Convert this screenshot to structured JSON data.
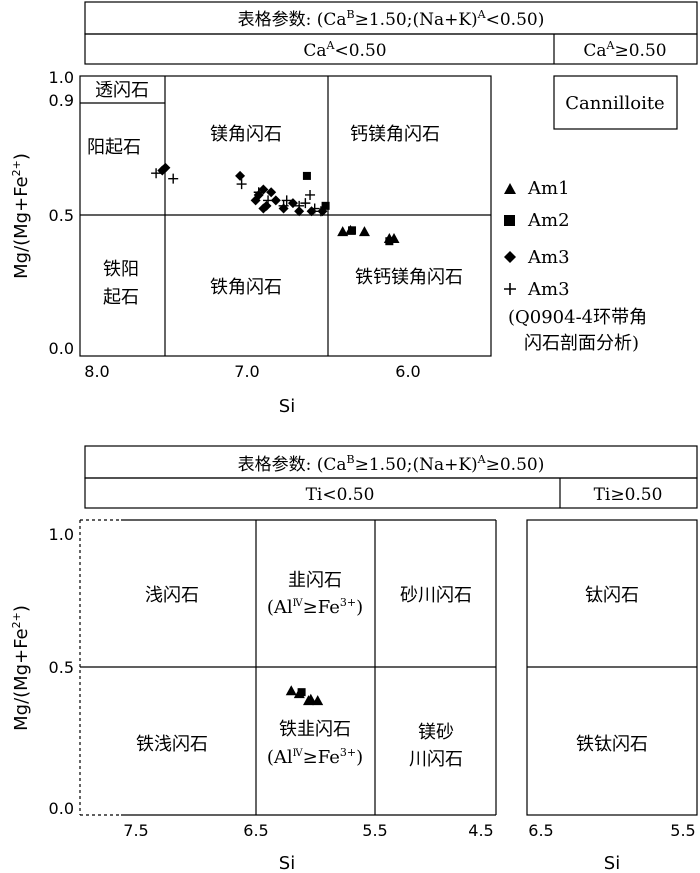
{
  "top": {
    "header": "表格参数: (Ca",
    "header_full": [
      "表格参数: (Ca",
      "B",
      "≥1.50;(Na+K)",
      "A",
      "<0.50)"
    ],
    "sub_left": [
      "Ca",
      "A",
      "<0.50"
    ],
    "sub_right": [
      "Ca",
      "A",
      "≥0.50"
    ],
    "ylabel": "Mg/(Mg+Fe",
    "ylabel_sup": "2+",
    "ylabel_end": ")",
    "xlabel": "Si",
    "xticks": [
      "8.0",
      "7.0",
      "6.0"
    ],
    "yticks": [
      "1.0",
      "0.9",
      "0.5",
      "0.0"
    ],
    "fields": {
      "tremolite": "透闪石",
      "actinolite": "阳起石",
      "mghbl": "镁角闪石",
      "tschermakite": "钙镁角闪石",
      "ferroact1": "铁阳",
      "ferroact2": "起石",
      "ferrohbl": "铁角闪石",
      "ferrotsch": "铁钙镁角闪石",
      "cannilloite": "Cannilloite"
    },
    "legend": [
      "Am1",
      "Am2",
      "Am3",
      "Am3",
      "(Q0904-4环带角",
      "闪石剖面分析)"
    ],
    "legend_symbols": [
      "triangle",
      "square",
      "diamond",
      "plus"
    ]
  },
  "bottom": {
    "header_full": [
      "表格参数: (Ca",
      "B",
      "≥1.50;(Na+K)",
      "A",
      "≥0.50)"
    ],
    "sub_left": "Ti<0.50",
    "sub_right": "Ti≥0.50",
    "ylabel": "Mg/(Mg+Fe",
    "ylabel_sup": "2+",
    "ylabel_end": ")",
    "xlabel": "Si",
    "xticks_left": [
      "7.5",
      "6.5",
      "5.5",
      "4.5"
    ],
    "xticks_right": [
      "6.5",
      "5.5"
    ],
    "yticks": [
      "1.0",
      "0.5",
      "0.0"
    ],
    "fields": {
      "edenite": "浅闪石",
      "pargasite": "韭闪石",
      "pargasite_cond": [
        "(Al",
        "Ⅳ",
        "≥Fe",
        "3+",
        ")"
      ],
      "sadanagaite": "砂川闪石",
      "kaersutite": "钛闪石",
      "ferroedenite": "铁浅闪石",
      "ferropargasite": "铁韭闪石",
      "mgsad1": "镁砂",
      "mgsad2": "川闪石",
      "ferrokaersutite": "铁钛闪石"
    }
  },
  "chart_data": [
    {
      "type": "scatter",
      "panel": "top",
      "xlabel": "Si",
      "ylabel": "Mg/(Mg+Fe2+)",
      "xlim": [
        8.0,
        5.5
      ],
      "ylim": [
        0.0,
        1.0
      ],
      "series": [
        {
          "name": "Am1",
          "symbol": "triangle",
          "points": [
            [
              6.42,
              0.435
            ],
            [
              6.37,
              0.44
            ],
            [
              6.28,
              0.435
            ],
            [
              6.12,
              0.41
            ],
            [
              6.09,
              0.41
            ]
          ]
        },
        {
          "name": "Am2",
          "symbol": "square",
          "points": [
            [
              6.65,
              0.64
            ],
            [
              6.53,
              0.53
            ],
            [
              6.36,
              0.44
            ],
            [
              6.12,
              0.4
            ]
          ]
        },
        {
          "name": "Am3",
          "symbol": "diamond",
          "points": [
            [
              7.58,
              0.66
            ],
            [
              7.56,
              0.67
            ],
            [
              7.08,
              0.64
            ],
            [
              6.96,
              0.57
            ],
            [
              6.93,
              0.59
            ],
            [
              6.88,
              0.58
            ],
            [
              6.91,
              0.53
            ],
            [
              6.98,
              0.55
            ],
            [
              6.8,
              0.52
            ],
            [
              6.74,
              0.54
            ],
            [
              6.85,
              0.55
            ],
            [
              6.7,
              0.51
            ],
            [
              6.55,
              0.51
            ],
            [
              6.62,
              0.51
            ],
            [
              6.93,
              0.52
            ]
          ]
        },
        {
          "name": "Am3",
          "symbol": "plus",
          "points": [
            [
              7.62,
              0.65
            ],
            [
              7.51,
              0.63
            ],
            [
              7.07,
              0.61
            ],
            [
              6.96,
              0.58
            ],
            [
              6.9,
              0.55
            ],
            [
              6.78,
              0.55
            ],
            [
              6.66,
              0.54
            ],
            [
              6.7,
              0.53
            ],
            [
              6.6,
              0.52
            ],
            [
              6.56,
              0.51
            ],
            [
              6.8,
              0.53
            ],
            [
              6.63,
              0.57
            ]
          ]
        }
      ]
    },
    {
      "type": "scatter",
      "panel": "bottom",
      "xlabel": "Si",
      "ylabel": "Mg/(Mg+Fe2+)",
      "xlim": [
        8.0,
        4.5
      ],
      "ylim": [
        0.0,
        1.0
      ],
      "series": [
        {
          "name": "Am1",
          "symbol": "triangle",
          "points": [
            [
              6.15,
              0.435
            ],
            [
              6.08,
              0.425
            ],
            [
              6.0,
              0.4
            ],
            [
              5.98,
              0.405
            ],
            [
              5.92,
              0.4
            ]
          ]
        },
        {
          "name": "Am2",
          "symbol": "square",
          "points": [
            [
              6.06,
              0.43
            ]
          ]
        }
      ]
    }
  ]
}
